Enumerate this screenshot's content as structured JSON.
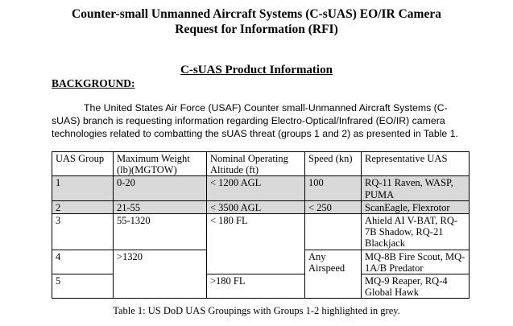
{
  "title": {
    "line1": "Counter-small Unmanned Aircraft Systems (C-sUAS) EO/IR Camera",
    "line2": "Request for Information (RFI)"
  },
  "section_heading": "C-sUAS Product Information",
  "background_label": "BACKGROUND:",
  "paragraph": {
    "line1": "The United States Air Force (USAF) Counter small-Unmanned Aircraft Systems (C-",
    "line2": "sUAS) branch is requesting information regarding Electro-Optical/Infrared (EO/IR) camera",
    "line3": "technologies related to combatting the sUAS threat (groups 1 and 2) as presented in Table 1."
  },
  "table": {
    "headers": {
      "group": "UAS Group",
      "weight": "Maximum Weight (lb)(MGTOW)",
      "altitude": "Nominal Operating Altitude (ft)",
      "speed": "Speed (kn)",
      "uas": "Representative UAS"
    },
    "rows": [
      {
        "group": "1",
        "weight": "0-20",
        "altitude": "< 1200 AGL",
        "speed": "100",
        "uas": "RQ-11 Raven, WASP, PUMA",
        "highlighted": true
      },
      {
        "group": "2",
        "weight": "21-55",
        "altitude": "< 3500 AGL",
        "speed": "< 250",
        "uas": "ScanEagle, Flexrotor",
        "highlighted": true
      },
      {
        "group": "3",
        "weight": "55-1320",
        "altitude": "< 180 FL",
        "speed": "",
        "uas": "Ahield AI V-BAT, RQ-7B Shadow, RQ-21 Blackjack",
        "highlighted": false
      },
      {
        "group": "4",
        "weight": ">1320",
        "altitude": "",
        "speed": "Any Airspeed",
        "uas": "MQ-8B Fire Scout, MQ-1A/B Predator",
        "highlighted": false
      },
      {
        "group": "5",
        "weight": "",
        "altitude": ">180 FL",
        "speed": "",
        "uas": "MQ-9 Reaper, RQ-4 Global Hawk",
        "highlighted": false
      }
    ],
    "highlight_color": "#d9d9d9"
  },
  "caption": "Table 1: US DoD UAS Groupings with Groups 1-2 highlighted in grey."
}
